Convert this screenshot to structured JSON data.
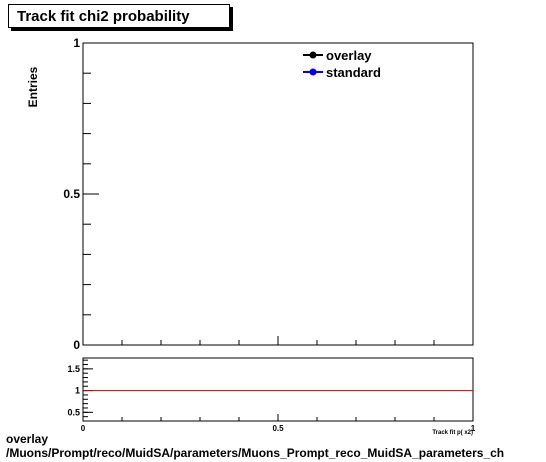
{
  "title": "Track fit chi2 probability",
  "footer": {
    "line1": "overlay",
    "line2": "/Muons/Prompt/reco/MuidSA/parameters/Muons_Prompt_reco_MuidSA_parameters_ch"
  },
  "chart_data": {
    "type": "line",
    "main": {
      "ylabel": "Entries",
      "xlim": [
        0,
        1
      ],
      "ylim": [
        0,
        1
      ],
      "yticks": [
        {
          "value": 0,
          "label": "0"
        },
        {
          "value": 0.5,
          "label": "0.5"
        },
        {
          "value": 1,
          "label": "1"
        }
      ],
      "series": [
        {
          "name": "overlay",
          "color": "#000000",
          "values": []
        },
        {
          "name": "standard",
          "color": "#0000ff",
          "values": []
        }
      ],
      "legend_position": "top-right"
    },
    "ratio": {
      "xlabel": "Track fit p( x2)",
      "xlim": [
        0,
        1
      ],
      "ylim": [
        0.3,
        1.75
      ],
      "xticks": [
        {
          "value": 0,
          "label": "0"
        },
        {
          "value": 0.5,
          "label": "0.5"
        },
        {
          "value": 1,
          "label": "1"
        }
      ],
      "yticks": [
        {
          "value": 0.5,
          "label": "0.5"
        },
        {
          "value": 1,
          "label": "1"
        },
        {
          "value": 1.5,
          "label": "1.5"
        }
      ],
      "reference_line": {
        "value": 1,
        "color": "#cc0000"
      }
    }
  }
}
